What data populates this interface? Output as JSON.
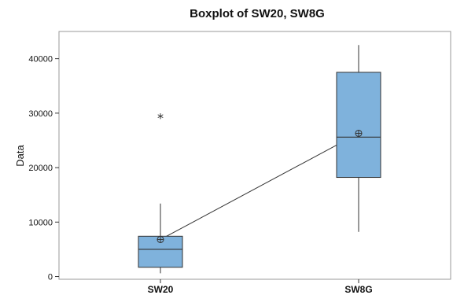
{
  "chart_data": {
    "type": "boxplot",
    "title": "Boxplot of SW20, SW8G",
    "xlabel": "",
    "ylabel": "Data",
    "ylim": [
      -500,
      45000
    ],
    "yticks": [
      0,
      10000,
      20000,
      30000,
      40000
    ],
    "categories": [
      "SW20",
      "SW8G"
    ],
    "box_color": "#7fb2dc",
    "mean_connector": true,
    "series": [
      {
        "category": "SW20",
        "whisker_low": 600,
        "q1": 1700,
        "median": 5000,
        "q3": 7400,
        "whisker_high": 13400,
        "mean": 6800,
        "outliers": [
          29300
        ]
      },
      {
        "category": "SW8G",
        "whisker_low": 8200,
        "q1": 18200,
        "median": 25600,
        "q3": 37500,
        "whisker_high": 42500,
        "mean": 26300,
        "outliers": []
      }
    ]
  }
}
